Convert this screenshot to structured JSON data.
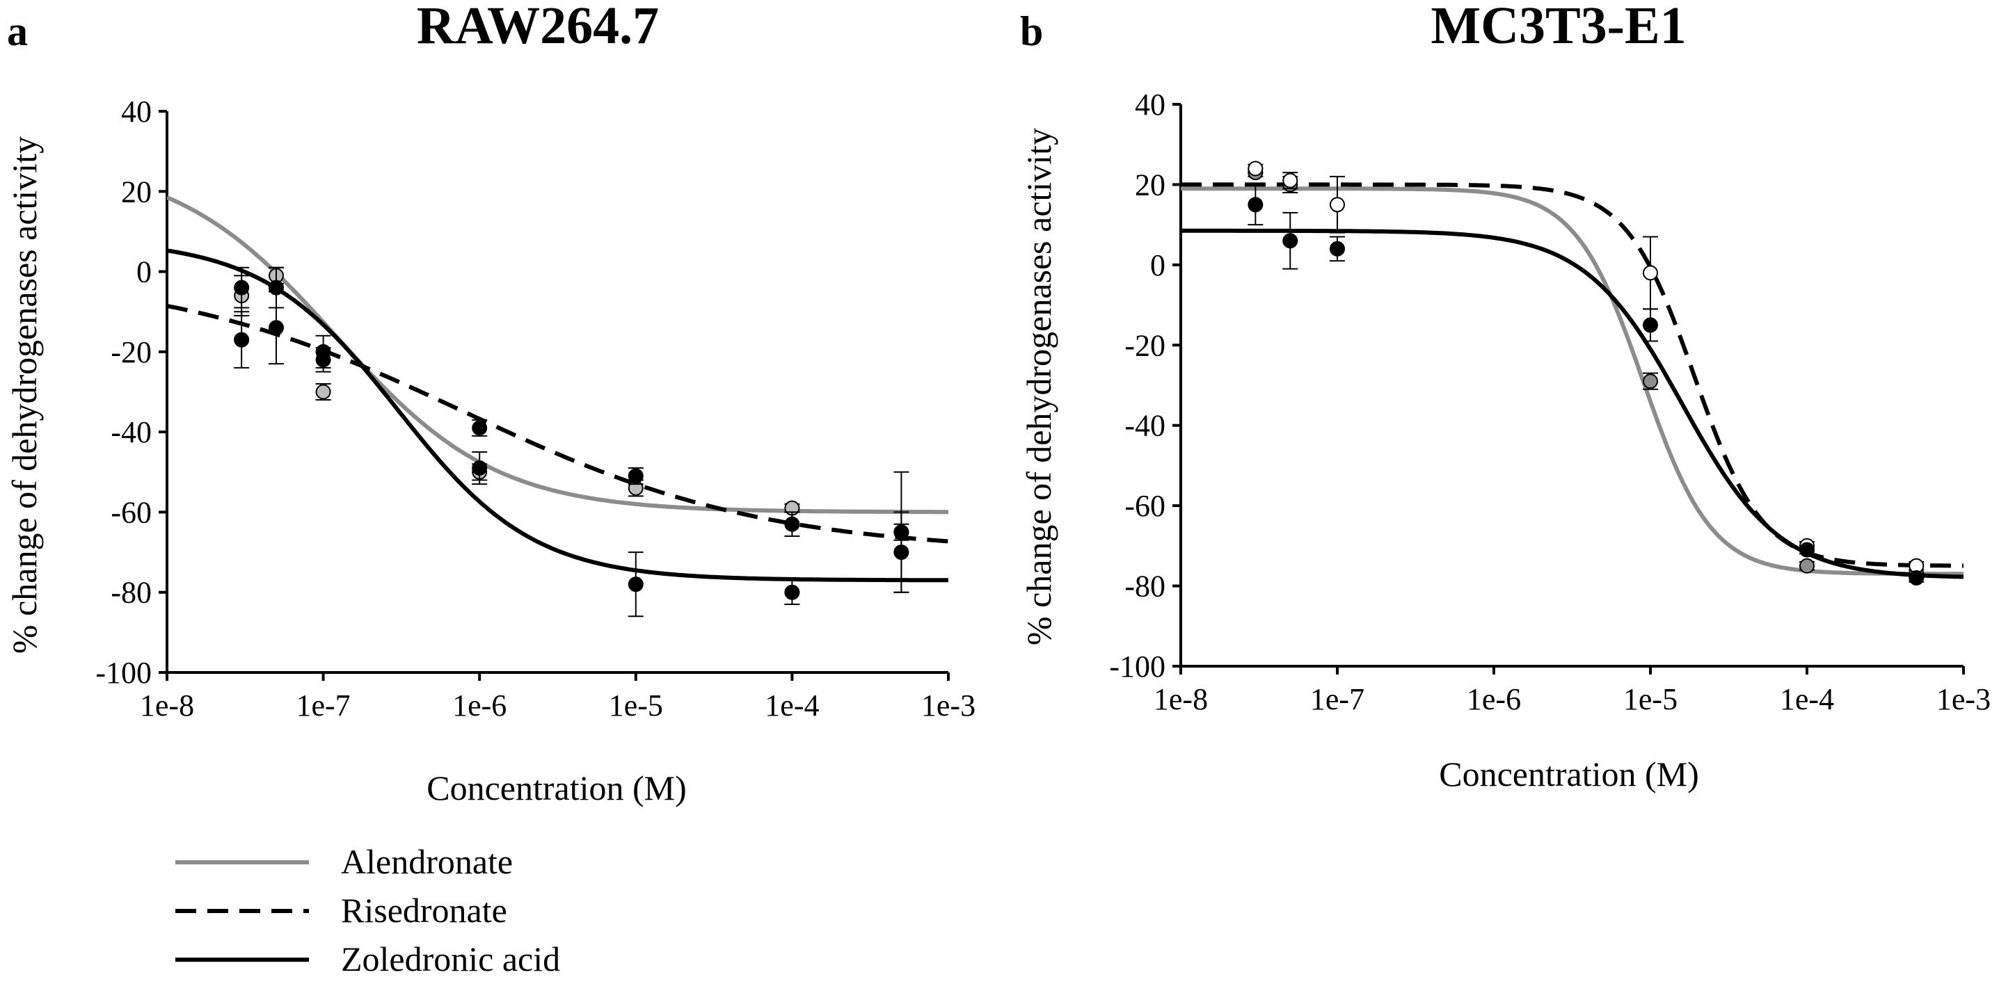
{
  "legend": {
    "items": [
      {
        "label": "Alendronate",
        "color": "#8c8c8c",
        "dash": "solid"
      },
      {
        "label": "Risedronate",
        "color": "#000000",
        "dash": "dashed"
      },
      {
        "label": "Zoledronic acid",
        "color": "#000000",
        "dash": "solid"
      }
    ]
  },
  "chart_data": [
    {
      "panel": "a",
      "type": "line",
      "title": "RAW264.7",
      "xlabel": "Concentration (M)",
      "ylabel": "% change of dehydrogenases activity",
      "xscale": "log",
      "xlim": [
        1e-08,
        0.001
      ],
      "ylim": [
        -100,
        40
      ],
      "xticks": [
        "1e-8",
        "1e-7",
        "1e-6",
        "1e-5",
        "1e-4",
        "1e-3"
      ],
      "yticks": [
        "40",
        "20",
        "0",
        "-20",
        "-40",
        "-60",
        "-80",
        "-100"
      ],
      "series": [
        {
          "name": "Alendronate",
          "color": "#8c8c8c",
          "dash": "solid",
          "marker_fill": "#bdbdbd",
          "points": [
            {
              "x": 3e-08,
              "y": -6,
              "err": 5
            },
            {
              "x": 5e-08,
              "y": -1,
              "err": 2
            },
            {
              "x": 1e-07,
              "y": -30,
              "err": 2
            },
            {
              "x": 1e-06,
              "y": -50,
              "err": 2
            },
            {
              "x": 1e-05,
              "y": -54,
              "err": 2
            },
            {
              "x": 0.0001,
              "y": -59,
              "err": 1
            },
            {
              "x": 0.0005,
              "y": -65,
              "err": 2
            }
          ],
          "curve": {
            "top": 28,
            "bottom": -60,
            "ec50": 1.2e-07,
            "hill": 0.85
          }
        },
        {
          "name": "Risedronate",
          "color": "#000000",
          "dash": "dashed",
          "marker_fill": "#000000",
          "points": [
            {
              "x": 3e-08,
              "y": -4,
              "err": 5
            },
            {
              "x": 5e-08,
              "y": -4,
              "err": 5
            },
            {
              "x": 1e-07,
              "y": -22,
              "err": 3
            },
            {
              "x": 1e-06,
              "y": -39,
              "err": 2
            },
            {
              "x": 1e-05,
              "y": -51,
              "err": 2
            },
            {
              "x": 0.0001,
              "y": -63,
              "err": 3
            },
            {
              "x": 0.0005,
              "y": -65,
              "err": 15
            }
          ],
          "curve": {
            "top": 0,
            "bottom": -70,
            "ec50": 8e-07,
            "hill": 0.45
          }
        },
        {
          "name": "Zoledronic acid",
          "color": "#000000",
          "dash": "solid",
          "marker_fill": "#000000",
          "points": [
            {
              "x": 3e-08,
              "y": -17,
              "err": 7
            },
            {
              "x": 5e-08,
              "y": -14,
              "err": 9
            },
            {
              "x": 1e-07,
              "y": -20,
              "err": 4
            },
            {
              "x": 1e-06,
              "y": -49,
              "err": 4
            },
            {
              "x": 1e-05,
              "y": -78,
              "err": 8
            },
            {
              "x": 0.0001,
              "y": -80,
              "err": 3
            },
            {
              "x": 0.0005,
              "y": -70,
              "err": 10
            }
          ],
          "curve": {
            "top": 8,
            "bottom": -77,
            "ec50": 3e-07,
            "hill": 1.0
          }
        }
      ]
    },
    {
      "panel": "b",
      "type": "line",
      "title": "MC3T3-E1",
      "xlabel": "Concentration (M)",
      "ylabel": "% change of dehydrogenases activity",
      "xscale": "log",
      "xlim": [
        1e-08,
        0.001
      ],
      "ylim": [
        -100,
        40
      ],
      "xticks": [
        "1e-8",
        "1e-7",
        "1e-6",
        "1e-5",
        "1e-4",
        "1e-3"
      ],
      "yticks": [
        "40",
        "20",
        "0",
        "-20",
        "-40",
        "-60",
        "-80",
        "-100"
      ],
      "series": [
        {
          "name": "Alendronate",
          "color": "#8c8c8c",
          "dash": "solid",
          "marker_fill": "#8c8c8c",
          "points": [
            {
              "x": 3e-08,
              "y": 23,
              "err": 1
            },
            {
              "x": 5e-08,
              "y": 20,
              "err": 2
            },
            {
              "x": 1e-05,
              "y": -29,
              "err": 2
            },
            {
              "x": 0.0001,
              "y": -75,
              "err": 1
            },
            {
              "x": 0.0005,
              "y": -77,
              "err": 1
            }
          ],
          "curve": {
            "top": 19,
            "bottom": -77,
            "ec50": 9e-06,
            "hill": 2.0
          }
        },
        {
          "name": "Risedronate",
          "color": "#000000",
          "dash": "dashed",
          "marker_fill": "#ffffff",
          "points": [
            {
              "x": 3e-08,
              "y": 24,
              "err": 1
            },
            {
              "x": 5e-08,
              "y": 21,
              "err": 2
            },
            {
              "x": 1e-07,
              "y": 15,
              "err": 7
            },
            {
              "x": 1e-05,
              "y": -2,
              "err": 9
            },
            {
              "x": 0.0001,
              "y": -70,
              "err": 1
            },
            {
              "x": 0.0005,
              "y": -75,
              "err": 1
            }
          ],
          "curve": {
            "top": 20,
            "bottom": -75,
            "ec50": 1.9e-05,
            "hill": 2.0
          }
        },
        {
          "name": "Zoledronic acid",
          "color": "#000000",
          "dash": "solid",
          "marker_fill": "#000000",
          "points": [
            {
              "x": 3e-08,
              "y": 15,
              "err": 5
            },
            {
              "x": 5e-08,
              "y": 6,
              "err": 7
            },
            {
              "x": 1e-07,
              "y": 4,
              "err": 3
            },
            {
              "x": 1e-05,
              "y": -15,
              "err": 4
            },
            {
              "x": 0.0001,
              "y": -71,
              "err": 1
            },
            {
              "x": 0.0005,
              "y": -78,
              "err": 1
            }
          ],
          "curve": {
            "top": 8.5,
            "bottom": -78,
            "ec50": 1.6e-05,
            "hill": 1.4
          }
        }
      ]
    }
  ]
}
